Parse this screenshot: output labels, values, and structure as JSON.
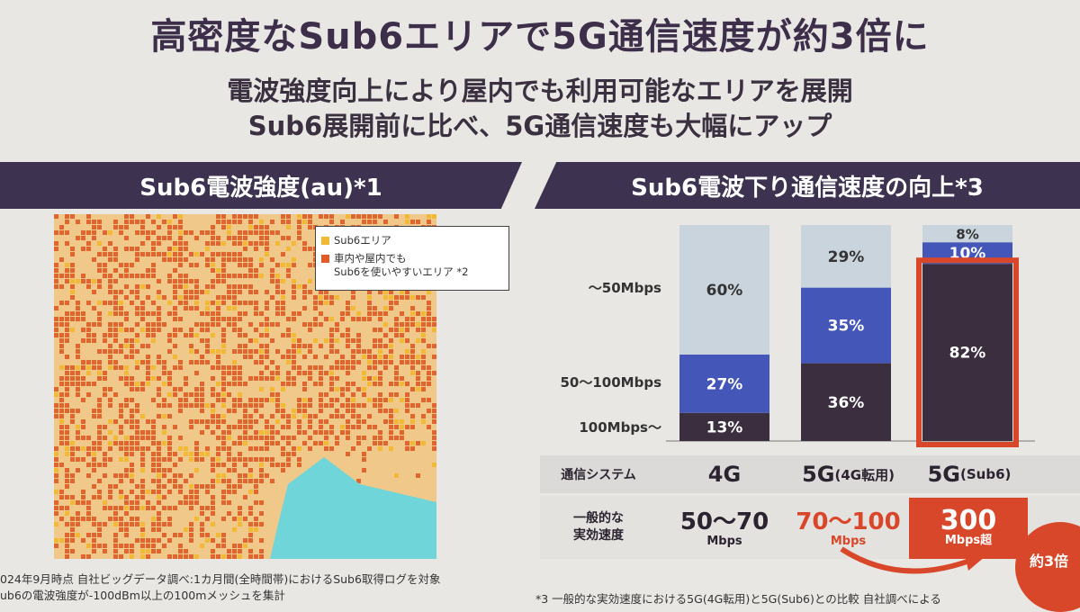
{
  "header": {
    "title": "高密度なSub6エリアで5G通信速度が約3倍に",
    "subtitle_line1": "電波強度向上により屋内でも利用可能なエリアを展開",
    "subtitle_line2": "Sub6展開前に比べ、5G通信速度も大幅にアップ"
  },
  "left_panel": {
    "banner": "Sub6電波強度(au)*1",
    "legend": [
      {
        "label": "Sub6エリア",
        "color": "#f2b935"
      },
      {
        "label": "車内や屋内でも",
        "label2": "Sub6を使いやすいエリア *2",
        "color": "#e05a2a"
      }
    ],
    "note_line1": "024年9月時点 自社ビッグデータ調べ:1カ月間(全時間帯)におけるSub6取得ログを対象",
    "note_line2": "ub6の電波強度が-100dBm以上の100mメッシュを集計"
  },
  "right_panel": {
    "banner": "Sub6電波下り通信速度の向上*3",
    "footnote": "*3 一般的な実効速度における5G(4G転用)と5G(Sub6)との比較 自社調べによる"
  },
  "chart_data": {
    "type": "bar",
    "stacked": true,
    "normalized": true,
    "categories": [
      "4G",
      "5G(4G転用)",
      "5G(Sub6)"
    ],
    "row_labels": [
      "〜50Mbps",
      "50〜100Mbps",
      "100Mbps〜"
    ],
    "series": [
      {
        "name": "100Mbps〜",
        "values": [
          13,
          36,
          82
        ],
        "color": "#3a2e3f"
      },
      {
        "name": "50〜100Mbps",
        "values": [
          27,
          35,
          10
        ],
        "color": "#4457b8"
      },
      {
        "name": "〜50Mbps",
        "values": [
          60,
          29,
          8
        ],
        "color": "#c9d4dc"
      }
    ],
    "highlight_category": "5G(Sub6)",
    "highlight_color": "#d9472a"
  },
  "table": {
    "label_system": "通信システム",
    "label_speed_line1": "一般的な",
    "label_speed_line2": "実効速度",
    "systems": [
      {
        "main": "4G",
        "sub": ""
      },
      {
        "main": "5G",
        "sub": "(4G転用)"
      },
      {
        "main": "5G",
        "sub": "(Sub6)"
      }
    ],
    "speeds": [
      {
        "value": "50〜70",
        "unit": "Mbps"
      },
      {
        "value": "70〜100",
        "unit": "Mbps"
      },
      {
        "value": "300",
        "unit": "Mbps超"
      }
    ],
    "ratio": "約3倍"
  }
}
